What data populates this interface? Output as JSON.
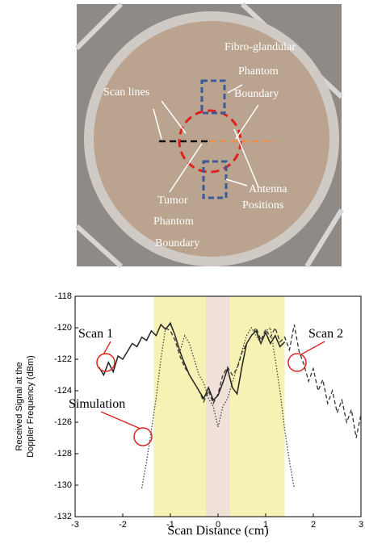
{
  "photo": {
    "labels": [
      "Fibro-glandular",
      "Phantom",
      "Boundary",
      "Scan lines",
      "Tumor",
      "Phantom",
      "Boundary",
      "Antenna",
      "Positions"
    ]
  },
  "chart_data": {
    "type": "line",
    "xlabel": "Scan Distance (cm)",
    "ylabel": [
      "Received Signal at the",
      "Doppler Frequency (dBm)"
    ],
    "xlim": [
      -3,
      3
    ],
    "xticks": [
      -3,
      -2,
      -1,
      0,
      1,
      2,
      3
    ],
    "ylim": [
      -132,
      -118
    ],
    "yticks": [
      -118,
      -120,
      -122,
      -124,
      -126,
      -128,
      -130,
      -132
    ],
    "shaded_regions": [
      {
        "xlim": [
          -1.35,
          1.4
        ],
        "color": "#f6f2b4"
      },
      {
        "xlim": [
          -0.25,
          0.25
        ],
        "color": "#efe0d8"
      }
    ],
    "series": [
      {
        "name": "Scan 1",
        "color": "#222222",
        "line_style": "solid",
        "x": [
          -2.5,
          -2.4,
          -2.3,
          -2.2,
          -2.1,
          -2.0,
          -1.9,
          -1.8,
          -1.7,
          -1.6,
          -1.5,
          -1.4,
          -1.3,
          -1.2,
          -1.1,
          -1.0,
          -0.9,
          -0.8,
          -0.7,
          -0.6,
          -0.5,
          -0.4,
          -0.3,
          -0.2,
          -0.1,
          0.0,
          0.1,
          0.2,
          0.3,
          0.4,
          0.5,
          0.6,
          0.7,
          0.8,
          0.9,
          1.0,
          1.1,
          1.2,
          1.3,
          1.4
        ],
        "values": [
          -122.5,
          -123,
          -122.2,
          -122.8,
          -121.8,
          -122,
          -121.5,
          -121,
          -121.2,
          -120.6,
          -120.8,
          -120.2,
          -120.5,
          -119.8,
          -120.1,
          -119.7,
          -120.5,
          -121.5,
          -122.3,
          -123,
          -123.5,
          -124,
          -124.5,
          -123.8,
          -124.6,
          -124.3,
          -123.5,
          -122.6,
          -123.8,
          -124.2,
          -122.5,
          -121,
          -120.5,
          -120.2,
          -121,
          -120.3,
          -121,
          -120.5,
          -121.2,
          -120.9
        ]
      },
      {
        "name": "Scan 2",
        "color": "#333333",
        "line_style": "dashed",
        "x": [
          -1.1,
          -1.0,
          -0.9,
          -0.8,
          -0.7,
          -0.6,
          -0.5,
          -0.4,
          -0.3,
          -0.2,
          -0.1,
          0.0,
          0.1,
          0.2,
          0.3,
          0.4,
          0.5,
          0.6,
          0.7,
          0.8,
          0.9,
          1.0,
          1.1,
          1.2,
          1.3,
          1.4,
          1.5,
          1.6,
          1.7,
          1.8,
          1.9,
          2.0,
          2.1,
          2.2,
          2.3,
          2.4,
          2.5,
          2.6,
          2.7,
          2.8,
          2.9,
          3.0
        ],
        "values": [
          -120,
          -120.2,
          -120.8,
          -121.8,
          -122.5,
          -123,
          -123.5,
          -124,
          -124.7,
          -124,
          -124.8,
          -124.2,
          -123,
          -122.5,
          -123,
          -122.6,
          -121.6,
          -121,
          -120.5,
          -120,
          -120.8,
          -120.1,
          -120.6,
          -120,
          -120.9,
          -120.6,
          -121.4,
          -119.8,
          -121.5,
          -122.3,
          -123.4,
          -122.6,
          -124,
          -123.3,
          -124.8,
          -124,
          -125.4,
          -124.6,
          -126,
          -125.2,
          -127,
          -125.5
        ]
      },
      {
        "name": "Simulation",
        "color": "#444444",
        "line_style": "dotted",
        "x": [
          -1.6,
          -1.5,
          -1.4,
          -1.3,
          -1.2,
          -1.1,
          -1.0,
          -0.9,
          -0.8,
          -0.7,
          -0.6,
          -0.5,
          -0.4,
          -0.3,
          -0.2,
          -0.1,
          0.0,
          0.1,
          0.2,
          0.3,
          0.4,
          0.5,
          0.6,
          0.7,
          0.8,
          0.9,
          1.0,
          1.1,
          1.2,
          1.3,
          1.4,
          1.5,
          1.6
        ],
        "values": [
          -130.2,
          -128.5,
          -126.5,
          -124.5,
          -122,
          -120,
          -119.8,
          -120.5,
          -121.5,
          -120.5,
          -121,
          -122,
          -123,
          -123.5,
          -124.5,
          -125,
          -126.3,
          -125,
          -124.5,
          -123.5,
          -122.5,
          -121.5,
          -120.5,
          -120,
          -120.5,
          -121,
          -120.2,
          -120,
          -122,
          -124,
          -126.5,
          -128.5,
          -130.2
        ]
      }
    ]
  }
}
